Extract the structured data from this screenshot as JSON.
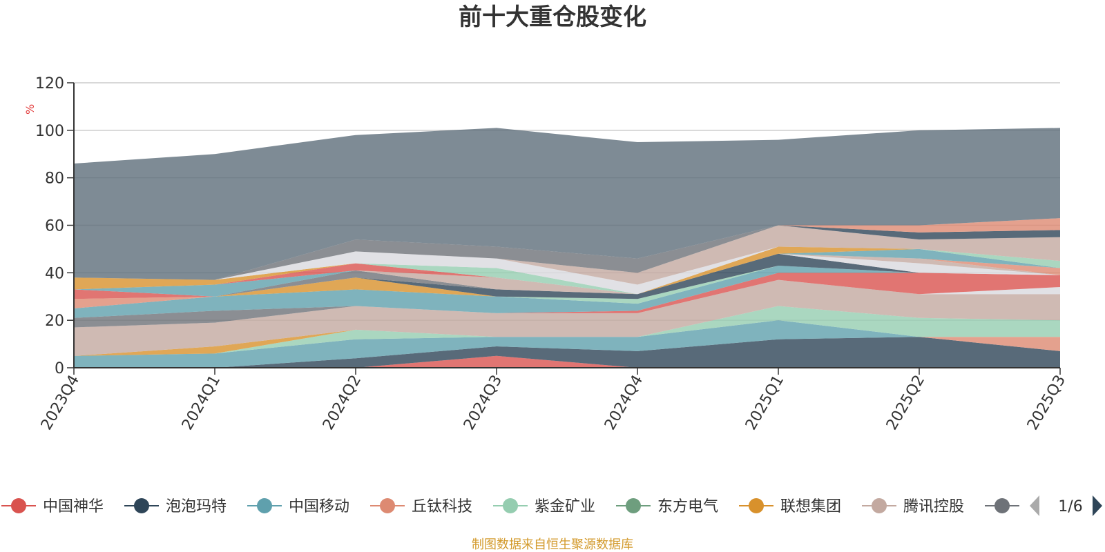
{
  "chart_data": {
    "type": "area",
    "title": "前十大重仓股变化",
    "ylabel": "%",
    "ylim": [
      0,
      120
    ],
    "yticks": [
      0,
      20,
      40,
      60,
      80,
      100,
      120
    ],
    "categories": [
      "2023Q4",
      "2024Q1",
      "2024Q2",
      "2024Q3",
      "2024Q4",
      "2025Q1",
      "2025Q2",
      "2025Q3"
    ],
    "stacked": true,
    "grid": true,
    "series": [
      {
        "name": "中国神华",
        "color": "#d9534f",
        "values": [
          0,
          0,
          0,
          5,
          0,
          0,
          0,
          0
        ]
      },
      {
        "name": "泡泡玛特",
        "color": "#2e4558",
        "values": [
          0,
          0,
          4,
          4,
          7,
          12,
          13,
          7
        ]
      },
      {
        "name": "中国移动",
        "color": "#5fa0ad",
        "values": [
          5,
          6,
          8,
          4,
          6,
          8,
          0,
          0
        ]
      },
      {
        "name": "丘钛科技",
        "color": "#dd8a72",
        "values": [
          0,
          0,
          0,
          0,
          0,
          0,
          0,
          6
        ]
      },
      {
        "name": "紫金矿业",
        "color": "#95cdb0",
        "values": [
          0,
          0,
          4,
          0,
          0,
          6,
          8,
          7
        ]
      },
      {
        "name": "东方电气",
        "color": "#6e9e7e",
        "values": [
          0,
          0,
          0,
          0,
          0,
          0,
          0,
          0
        ]
      },
      {
        "name": "联想集团",
        "color": "#d8912c",
        "values": [
          0,
          3,
          0,
          0,
          0,
          0,
          0,
          0
        ]
      },
      {
        "name": "腾讯控股",
        "color": "#c3a9a0",
        "values": [
          12,
          10,
          10,
          10,
          10,
          11,
          10,
          11
        ]
      },
      {
        "name": "",
        "color": "#6e7278",
        "values": [
          4,
          5,
          0,
          0,
          0,
          0,
          0,
          0
        ]
      },
      {
        "name": "",
        "color": "#d9d9de",
        "values": [
          0,
          0,
          0,
          0,
          0,
          0,
          0,
          3
        ]
      },
      {
        "name": "",
        "color": "#d9534f",
        "values": [
          0,
          0,
          0,
          0,
          1,
          3,
          9,
          5
        ]
      },
      {
        "name": "",
        "color": "#5fa0ad",
        "values": [
          4,
          6,
          7,
          7,
          3,
          3,
          0,
          0
        ]
      },
      {
        "name": "",
        "color": "#dd8a72",
        "values": [
          4,
          0,
          0,
          0,
          0,
          0,
          0,
          0
        ]
      },
      {
        "name": "",
        "color": "#95cdb0",
        "values": [
          0,
          0,
          0,
          0,
          2,
          0,
          0,
          0
        ]
      },
      {
        "name": "",
        "color": "#d8912c",
        "values": [
          0,
          0,
          5,
          0,
          0,
          0,
          0,
          0
        ]
      },
      {
        "name": "",
        "color": "#2e4558",
        "values": [
          0,
          0,
          0,
          3,
          2,
          5,
          0,
          0
        ]
      },
      {
        "name": "",
        "color": "#d9d9de",
        "values": [
          0,
          0,
          0,
          0,
          0,
          0,
          4,
          0
        ]
      },
      {
        "name": "",
        "color": "#6e7278",
        "values": [
          0,
          0,
          3,
          0,
          0,
          0,
          0,
          0
        ]
      },
      {
        "name": "",
        "color": "#c3a9a0",
        "values": [
          0,
          0,
          0,
          5,
          0,
          0,
          2,
          0
        ]
      },
      {
        "name": "",
        "color": "#dd8a72",
        "values": [
          0,
          0,
          0,
          0,
          0,
          0,
          0,
          3
        ]
      },
      {
        "name": "",
        "color": "#d9534f",
        "values": [
          4,
          0,
          0,
          0,
          0,
          0,
          0,
          0
        ]
      },
      {
        "name": "",
        "color": "#5fa0ad",
        "values": [
          0,
          5,
          0,
          0,
          0,
          0,
          4,
          0
        ]
      },
      {
        "name": "",
        "color": "#d9534f",
        "values": [
          0,
          0,
          3,
          0,
          0,
          0,
          0,
          0
        ]
      },
      {
        "name": "",
        "color": "#95cdb0",
        "values": [
          0,
          0,
          0,
          4,
          0,
          0,
          0,
          3
        ]
      },
      {
        "name": "",
        "color": "#d8912c",
        "values": [
          5,
          2,
          0,
          0,
          0,
          3,
          0,
          0
        ]
      },
      {
        "name": "",
        "color": "#d9d9de",
        "values": [
          0,
          0,
          5,
          4,
          4,
          0,
          0,
          0
        ]
      },
      {
        "name": "",
        "color": "#c3a9a0",
        "values": [
          0,
          0,
          0,
          0,
          5,
          9,
          4,
          10
        ]
      },
      {
        "name": "",
        "color": "#2e4558",
        "values": [
          0,
          0,
          0,
          0,
          0,
          0,
          3,
          3
        ]
      },
      {
        "name": "",
        "color": "#dd8a72",
        "values": [
          0,
          0,
          0,
          0,
          0,
          0,
          3,
          5
        ]
      },
      {
        "name": "",
        "color": "#6e7278",
        "values": [
          0,
          0,
          5,
          5,
          6,
          0,
          0,
          0
        ]
      },
      {
        "name": "",
        "color": "#5e6e7b",
        "values": [
          48,
          53,
          44,
          50,
          49,
          36,
          40,
          38
        ]
      }
    ]
  },
  "legend": {
    "items": [
      {
        "label": "中国神华",
        "color": "#d9534f"
      },
      {
        "label": "泡泡玛特",
        "color": "#2e4558"
      },
      {
        "label": "中国移动",
        "color": "#5fa0ad"
      },
      {
        "label": "丘钛科技",
        "color": "#dd8a72"
      },
      {
        "label": "紫金矿业",
        "color": "#95cdb0"
      },
      {
        "label": "东方电气",
        "color": "#6e9e7e"
      },
      {
        "label": "联想集团",
        "color": "#d8912c"
      },
      {
        "label": "腾讯控股",
        "color": "#c3a9a0"
      },
      {
        "label": "",
        "color": "#6e7278"
      }
    ],
    "page": "1/6",
    "prev_icon": "triangle-left-icon",
    "next_icon": "triangle-right-icon"
  },
  "footer": {
    "text": "制图数据来自恒生聚源数据库",
    "color": "#d39a2c"
  },
  "colors": {
    "axis": "#333333",
    "grid": "#cccccc",
    "ylabel": "#e23b3b",
    "arrow_active": "#2e4558",
    "arrow_inactive": "#aaaaaa"
  }
}
